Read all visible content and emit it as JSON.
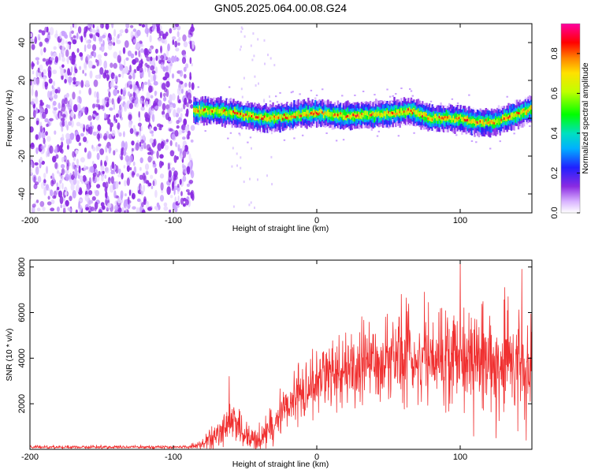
{
  "title": "GN05.2025.064.00.08.G24",
  "chart_data": [
    {
      "type": "heatmap",
      "name": "spectrogram",
      "xlabel": "Height of straight line (km)",
      "ylabel": "Frequency (Hz)",
      "xlim": [
        -200,
        150
      ],
      "ylim": [
        -50,
        50
      ],
      "xticks": [
        -200,
        -100,
        0,
        100
      ],
      "xtick_labels": [
        "-200",
        "-100",
        "0",
        "100"
      ],
      "yticks": [
        -40,
        -20,
        0,
        20,
        40
      ],
      "ytick_labels": [
        "-40",
        "-20",
        "0",
        "20",
        "40"
      ],
      "noise_region": {
        "x_range": [
          -200,
          -86
        ],
        "freq_range": [
          -50,
          50
        ]
      },
      "signal_band": {
        "x_range": [
          -86,
          150
        ],
        "center_freq_hz": [
          {
            "x": -85,
            "f": 4
          },
          {
            "x": -75,
            "f": 4
          },
          {
            "x": -60,
            "f": 3
          },
          {
            "x": -45,
            "f": 1
          },
          {
            "x": -35,
            "f": 0
          },
          {
            "x": -20,
            "f": 1
          },
          {
            "x": 0,
            "f": 3
          },
          {
            "x": 20,
            "f": 1
          },
          {
            "x": 40,
            "f": 2
          },
          {
            "x": 55,
            "f": 3
          },
          {
            "x": 65,
            "f": 4
          },
          {
            "x": 80,
            "f": 0
          },
          {
            "x": 100,
            "f": 0
          },
          {
            "x": 110,
            "f": -2
          },
          {
            "x": 125,
            "f": -2
          },
          {
            "x": 140,
            "f": 2
          },
          {
            "x": 150,
            "f": 5
          }
        ],
        "peak_amplitude": 0.95
      },
      "colorbar": {
        "label": "Normalized spectral amplitude",
        "range": [
          0.0,
          0.95
        ],
        "ticks": [
          0.0,
          0.2,
          0.4,
          0.6,
          0.8
        ],
        "tick_labels": [
          "0.0",
          "0.2",
          "0.4",
          "0.6",
          "0.8"
        ]
      }
    },
    {
      "type": "line",
      "name": "snr",
      "xlabel": "Height of straight line (km)",
      "ylabel": "SNR (10 * v/v)",
      "xlim": [
        -200,
        150
      ],
      "ylim": [
        0,
        8300
      ],
      "xticks": [
        -200,
        -100,
        0,
        100
      ],
      "xtick_labels": [
        "-200",
        "-100",
        "0",
        "100"
      ],
      "yticks": [
        2000,
        4000,
        6000,
        8000
      ],
      "ytick_labels": [
        "2000",
        "4000",
        "6000",
        "8000"
      ],
      "color": "#f03030",
      "series": [
        {
          "name": "SNR",
          "envelope": [
            {
              "x": -200,
              "mean": 100,
              "spread": 80
            },
            {
              "x": -90,
              "mean": 100,
              "spread": 80
            },
            {
              "x": -80,
              "mean": 200,
              "spread": 250
            },
            {
              "x": -70,
              "mean": 600,
              "spread": 600
            },
            {
              "x": -60,
              "mean": 1300,
              "spread": 1400
            },
            {
              "x": -50,
              "mean": 500,
              "spread": 700
            },
            {
              "x": -40,
              "mean": 400,
              "spread": 600
            },
            {
              "x": -30,
              "mean": 1200,
              "spread": 1000
            },
            {
              "x": -20,
              "mean": 2000,
              "spread": 1200
            },
            {
              "x": -10,
              "mean": 2600,
              "spread": 1400
            },
            {
              "x": 0,
              "mean": 3000,
              "spread": 1600
            },
            {
              "x": 20,
              "mean": 3500,
              "spread": 1800
            },
            {
              "x": 40,
              "mean": 3800,
              "spread": 2000
            },
            {
              "x": 60,
              "mean": 4200,
              "spread": 2400
            },
            {
              "x": 80,
              "mean": 4000,
              "spread": 2200
            },
            {
              "x": 100,
              "mean": 4200,
              "spread": 2500
            },
            {
              "x": 120,
              "mean": 3900,
              "spread": 2600
            },
            {
              "x": 135,
              "mean": 4000,
              "spread": 2800
            },
            {
              "x": 150,
              "mean": 3800,
              "spread": 2600
            }
          ],
          "spikes": [
            {
              "x": -61,
              "y": 3200
            },
            {
              "x": 59,
              "y": 6800
            },
            {
              "x": 75,
              "y": 6900
            },
            {
              "x": 100,
              "y": 8300
            },
            {
              "x": 131,
              "y": 7100
            },
            {
              "x": 143,
              "y": 7900
            },
            {
              "x": 125,
              "y": 500
            },
            {
              "x": 146,
              "y": 400
            }
          ]
        }
      ]
    }
  ]
}
